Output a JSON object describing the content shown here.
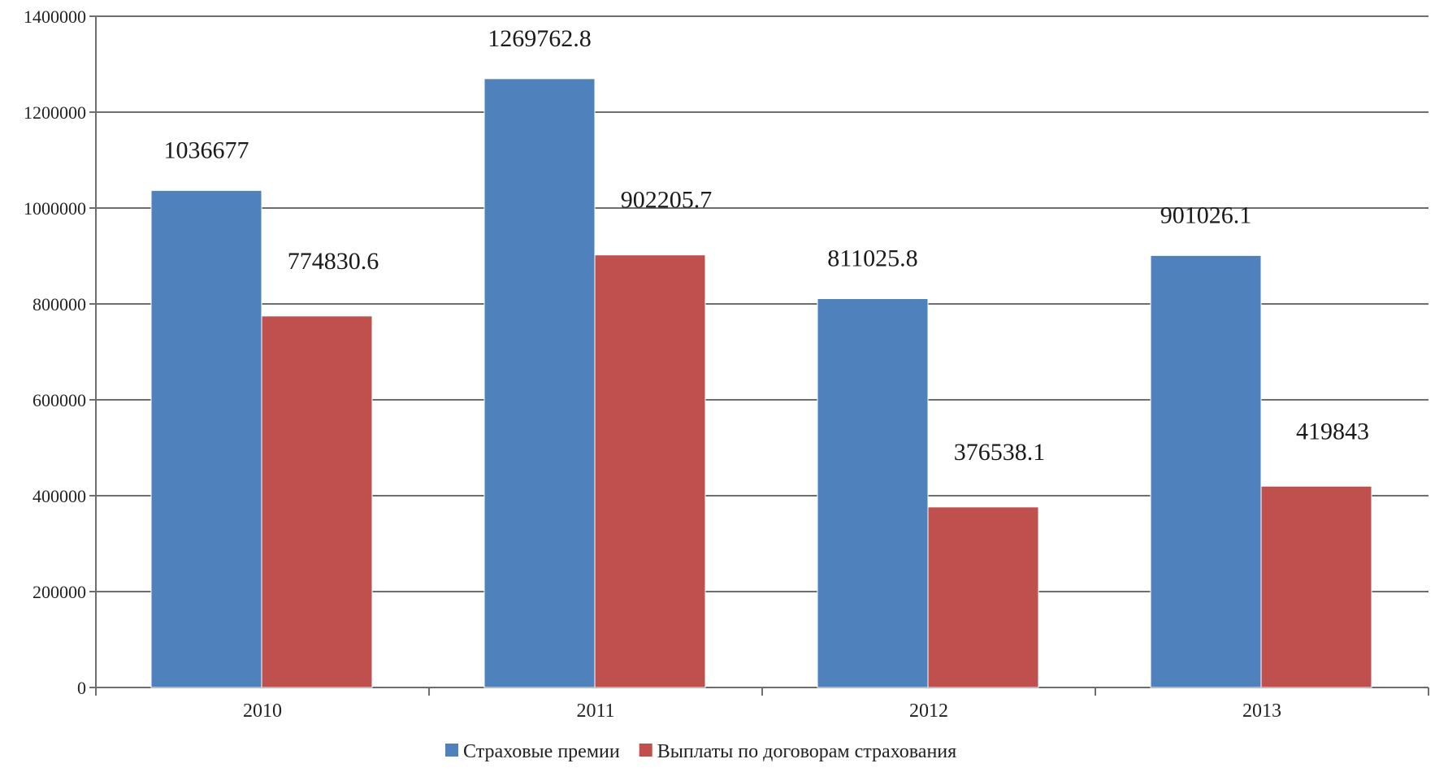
{
  "chart_data": {
    "type": "bar",
    "title": "",
    "xlabel": "",
    "ylabel": "",
    "categories": [
      "2010",
      "2011",
      "2012",
      "2013"
    ],
    "series": [
      {
        "name": "Страховые премии",
        "color": "#4F81BD",
        "values": [
          1036677,
          1269762.8,
          811025.8,
          901026.1
        ],
        "labels": [
          "1036677",
          "1269762.8",
          "811025.8",
          "901026.1"
        ]
      },
      {
        "name": "Выплаты по договорам страхования",
        "color": "#C0504D",
        "values": [
          774830.6,
          902205.7,
          376538.1,
          419843
        ],
        "labels": [
          "774830.6",
          "902205.7",
          "376538.1",
          "419843"
        ]
      }
    ],
    "ylim": [
      0,
      1400000
    ],
    "yticks": [
      0,
      200000,
      400000,
      600000,
      800000,
      1000000,
      1200000,
      1400000
    ],
    "ytick_labels": [
      "0",
      "200000",
      "400000",
      "600000",
      "800000",
      "1000000",
      "1200000",
      "1400000"
    ],
    "grid": true,
    "legend_position": "bottom"
  }
}
